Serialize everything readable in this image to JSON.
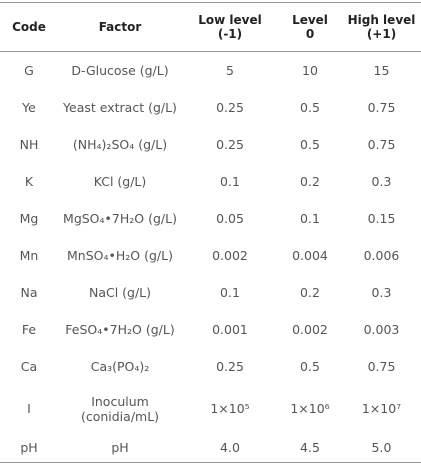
{
  "table": {
    "header": [
      "Code",
      "Factor",
      "Low level\n(-1)",
      "Level\n0",
      "High level\n(+1)"
    ],
    "rows": [
      [
        "G",
        "D-Glucose (g/L)",
        "5",
        "10",
        "15"
      ],
      [
        "Ye",
        "Yeast extract (g/L)",
        "0.25",
        "0.5",
        "0.75"
      ],
      [
        "NH",
        "(NH₄)₂SO₄ (g/L)",
        "0.25",
        "0.5",
        "0.75"
      ],
      [
        "K",
        "KCl (g/L)",
        "0.1",
        "0.2",
        "0.3"
      ],
      [
        "Mg",
        "MgSO₄•7H₂O (g/L)",
        "0.05",
        "0.1",
        "0.15"
      ],
      [
        "Mn",
        "MnSO₄•H₂O (g/L)",
        "0.002",
        "0.004",
        "0.006"
      ],
      [
        "Na",
        "NaCl (g/L)",
        "0.1",
        "0.2",
        "0.3"
      ],
      [
        "Fe",
        "FeSO₄•7H₂O (g/L)",
        "0.001",
        "0.002",
        "0.003"
      ],
      [
        "Ca",
        "Ca₃(PO₄)₂",
        "0.25",
        "0.5",
        "0.75"
      ],
      [
        "I",
        "Inoculum\n(conidia/mL)",
        "1×10⁵",
        "1×10⁶",
        "1×10⁷"
      ],
      [
        "pH",
        "pH",
        "4.0",
        "4.5",
        "5.0"
      ]
    ]
  }
}
